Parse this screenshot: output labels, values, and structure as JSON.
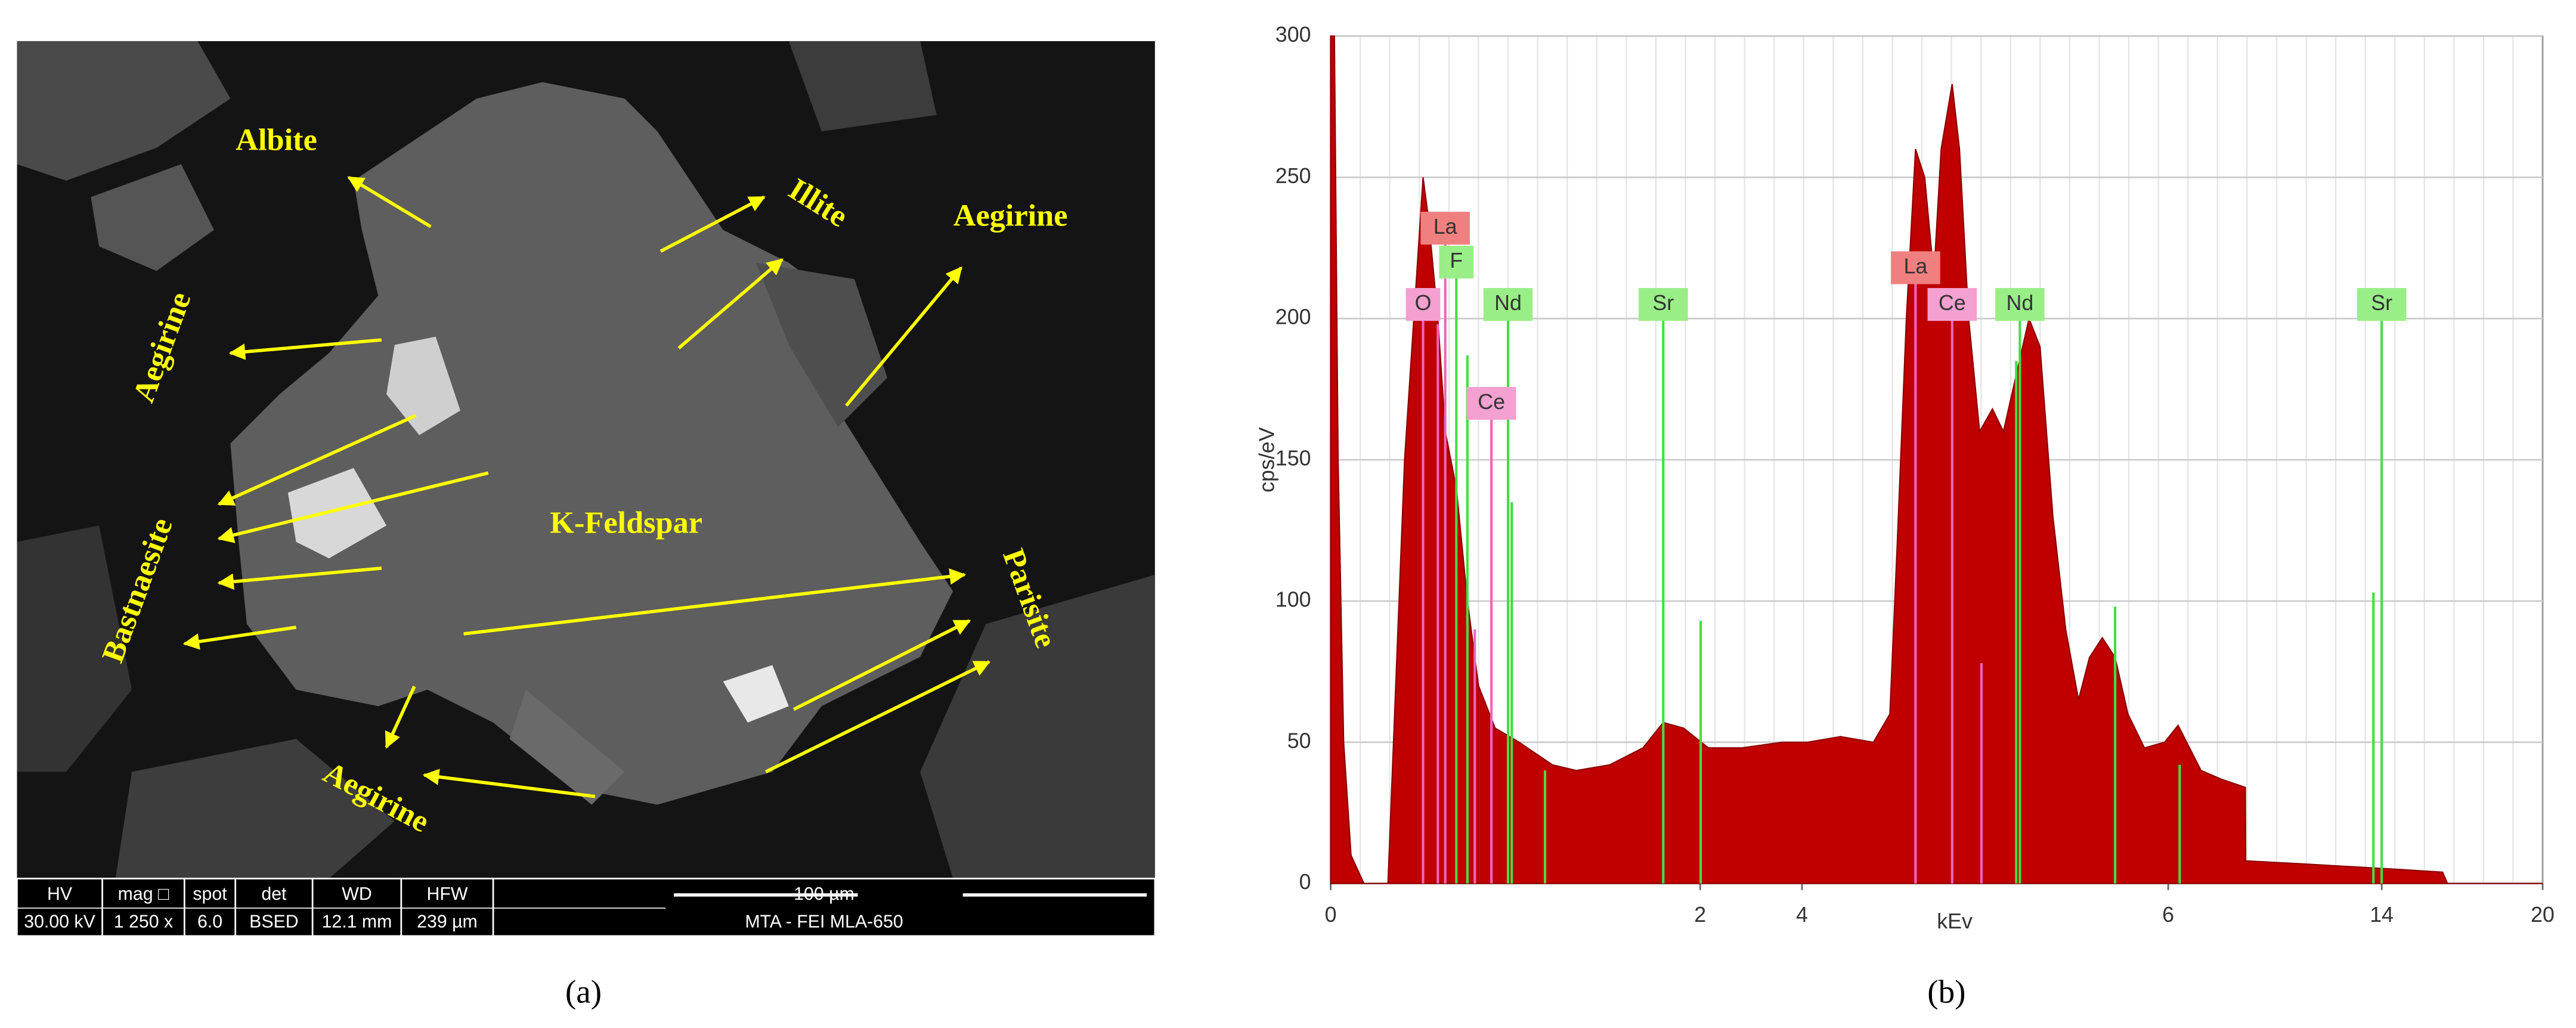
{
  "panel_a": {
    "labels": [
      "Albite",
      "Illite",
      "Aegirine",
      "Aegirine",
      "Bastnaesite",
      "K-Feldspar",
      "Parisite",
      "Aegirine"
    ],
    "info_bar": {
      "headers": [
        "HV",
        "mag □",
        "spot",
        "det",
        "WD",
        "HFW",
        "100 µm"
      ],
      "values": [
        "30.00 kV",
        "1 250 x",
        "6.0",
        "BSED",
        "12.1 mm",
        "239 µm",
        "MTA - FEI MLA-650"
      ]
    }
  },
  "chart_data": {
    "type": "area",
    "ylabel": "cps/eV",
    "xlabel": "kEv",
    "xlim": [
      0,
      20
    ],
    "xticks": [
      0,
      2,
      4,
      6,
      14,
      20
    ],
    "ylim": [
      0,
      300
    ],
    "yticks": [
      0,
      50,
      100,
      150,
      200,
      250,
      300
    ],
    "grid": true,
    "color": "#c00000",
    "x": [
      0,
      0.02,
      0.04,
      0.07,
      0.11,
      0.18,
      0.31,
      0.34,
      0.4,
      0.46,
      0.5,
      0.53,
      0.58,
      0.62,
      0.68,
      0.74,
      0.8,
      0.89,
      1.02,
      1.2,
      1.33,
      1.51,
      1.69,
      1.8,
      1.91,
      2.16,
      2.81,
      3.61,
      4.03,
      4.21,
      4.39,
      4.48,
      4.52,
      4.57,
      4.62,
      4.67,
      4.72,
      4.76,
      4.82,
      4.86,
      4.91,
      4.97,
      5.04,
      5.1,
      5.17,
      5.24,
      5.3,
      5.37,
      5.44,
      5.51,
      5.57,
      5.64,
      5.71,
      5.78,
      5.87,
      5.98,
      6.37,
      6.8,
      7.23,
      7.97,
      8.89,
      8.9,
      10.92,
      14.61,
      16.27,
      16.45,
      20
    ],
    "values": [
      300,
      300,
      150,
      50,
      10,
      0,
      0,
      50,
      150,
      210,
      250,
      235,
      200,
      160,
      140,
      100,
      70,
      55,
      50,
      42,
      40,
      42,
      48,
      57,
      55,
      48,
      48,
      50,
      50,
      52,
      50,
      60,
      120,
      200,
      260,
      250,
      215,
      260,
      283,
      260,
      200,
      160,
      168,
      160,
      180,
      200,
      190,
      130,
      90,
      65,
      80,
      87,
      80,
      60,
      48,
      50,
      56,
      48,
      40,
      37,
      34,
      8,
      7,
      5,
      4,
      0,
      0
    ],
    "element_lines": [
      {
        "label": "La",
        "color": "#f08080",
        "x": 0.62,
        "y": 232
      },
      {
        "label": "F",
        "color": "#99ee88",
        "x": 0.68,
        "y": 220
      },
      {
        "label": "O",
        "color": "#f4a0d0",
        "x": 0.5,
        "y": 205
      },
      {
        "label": "Nd",
        "color": "#99ee88",
        "x": 0.96,
        "y": 205
      },
      {
        "label": "Sr",
        "color": "#99ee88",
        "x": 1.8,
        "y": 205
      },
      {
        "label": "Ce",
        "color": "#f4a0d0",
        "x": 0.87,
        "y": 170
      },
      {
        "label": "La",
        "color": "#f08080",
        "x": 4.62,
        "y": 218
      },
      {
        "label": "Ce",
        "color": "#f4a0d0",
        "x": 4.82,
        "y": 205
      },
      {
        "label": "Nd",
        "color": "#99ee88",
        "x": 5.19,
        "y": 205
      },
      {
        "label": "Sr",
        "color": "#99ee88",
        "x": 14.0,
        "y": 205
      }
    ],
    "other_lines": [
      {
        "color": "#44dd44",
        "x": 0.74,
        "y": 187
      },
      {
        "color": "#44dd44",
        "x": 0.98,
        "y": 135
      },
      {
        "color": "#44dd44",
        "x": 2.01,
        "y": 93
      },
      {
        "color": "#44dd44",
        "x": 5.17,
        "y": 185
      },
      {
        "color": "#44dd44",
        "x": 5.71,
        "y": 98
      },
      {
        "color": "#44dd44",
        "x": 6.43,
        "y": 42
      },
      {
        "color": "#44dd44",
        "x": 13.69,
        "y": 103
      },
      {
        "color": "#44dd44",
        "x": 1.16,
        "y": 40
      },
      {
        "color": "#ee66bb",
        "x": 0.78,
        "y": 90
      },
      {
        "color": "#ee66bb",
        "x": 0.58,
        "y": 198
      },
      {
        "color": "#ee66bb",
        "x": 4.98,
        "y": 78
      }
    ]
  },
  "captions": [
    "(a)",
    "(b)"
  ]
}
